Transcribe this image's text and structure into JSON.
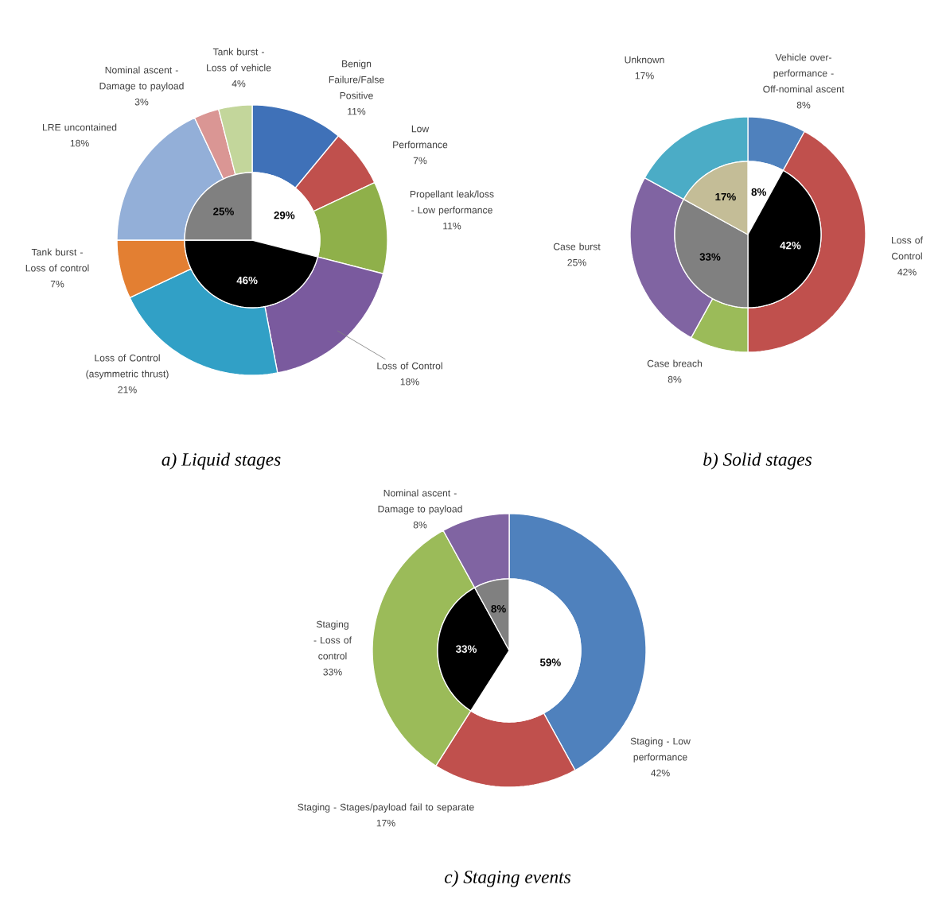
{
  "chart_data": [
    {
      "type": "donut",
      "title": "a) Liquid stages",
      "categories": [
        "Benign Failure/False Positive",
        "Low Performance",
        "Propellant leak/loss - Low performance",
        "Loss of Control",
        "Loss of Control (asymmetric thrust)",
        "Tank burst - Loss of control",
        "LRE uncontained",
        "Nominal ascent - Damage to payload",
        "Tank burst - Loss of vehicle"
      ],
      "values": [
        11,
        7,
        11,
        18,
        21,
        7,
        18,
        3,
        4
      ],
      "colors": [
        "#3f71b8",
        "#c0504d",
        "#8fb04a",
        "#7a5a9e",
        "#31a0c6",
        "#e37f32",
        "#93afd8",
        "#da9694",
        "#c3d69b"
      ],
      "value_labels": [
        "11%",
        "7%",
        "11%",
        "18%",
        "21%",
        "7%",
        "18%",
        "3%",
        "4%"
      ]
    },
    {
      "type": "pie",
      "categories": [
        null,
        null,
        null
      ],
      "values": [
        29,
        46,
        25
      ],
      "colors": [
        "#ffffff",
        "#000000",
        "#808080"
      ],
      "value_labels": [
        "29%",
        "46%",
        "25%"
      ]
    },
    {
      "type": "donut",
      "title": "b) Solid stages",
      "categories": [
        "Vehicle over-performance - Off-nominal ascent",
        "Loss of Control",
        "Case breach",
        "Case burst",
        "Unknown"
      ],
      "values": [
        8,
        42,
        8,
        25,
        17
      ],
      "colors": [
        "#4f81bd",
        "#c0504d",
        "#9bbb59",
        "#8064a2",
        "#4bacc6"
      ],
      "value_labels": [
        "8%",
        "42%",
        "8%",
        "25%",
        "17%"
      ]
    },
    {
      "type": "pie",
      "categories": [
        null,
        null,
        null,
        null
      ],
      "values": [
        8,
        42,
        33,
        17
      ],
      "colors": [
        "#ffffff",
        "#000000",
        "#808080",
        "#c4bd97"
      ],
      "value_labels": [
        "8%",
        "42%",
        "33%",
        "17%"
      ]
    },
    {
      "type": "donut",
      "title": "c) Staging events",
      "categories": [
        "Staging - Low performance",
        "Staging - Stages/payload fail to separate",
        "Staging - Loss of control",
        "Nominal ascent - Damage to payload"
      ],
      "values": [
        42,
        17,
        33,
        8
      ],
      "colors": [
        "#4f81bd",
        "#c0504d",
        "#9bbb59",
        "#8064a2"
      ],
      "value_labels": [
        "42%",
        "17%",
        "33%",
        "8%"
      ]
    },
    {
      "type": "pie",
      "categories": [
        null,
        null,
        null
      ],
      "values": [
        59,
        33,
        8
      ],
      "colors": [
        "#ffffff",
        "#000000",
        "#808080"
      ],
      "value_labels": [
        "59%",
        "33%",
        "8%"
      ]
    }
  ]
}
